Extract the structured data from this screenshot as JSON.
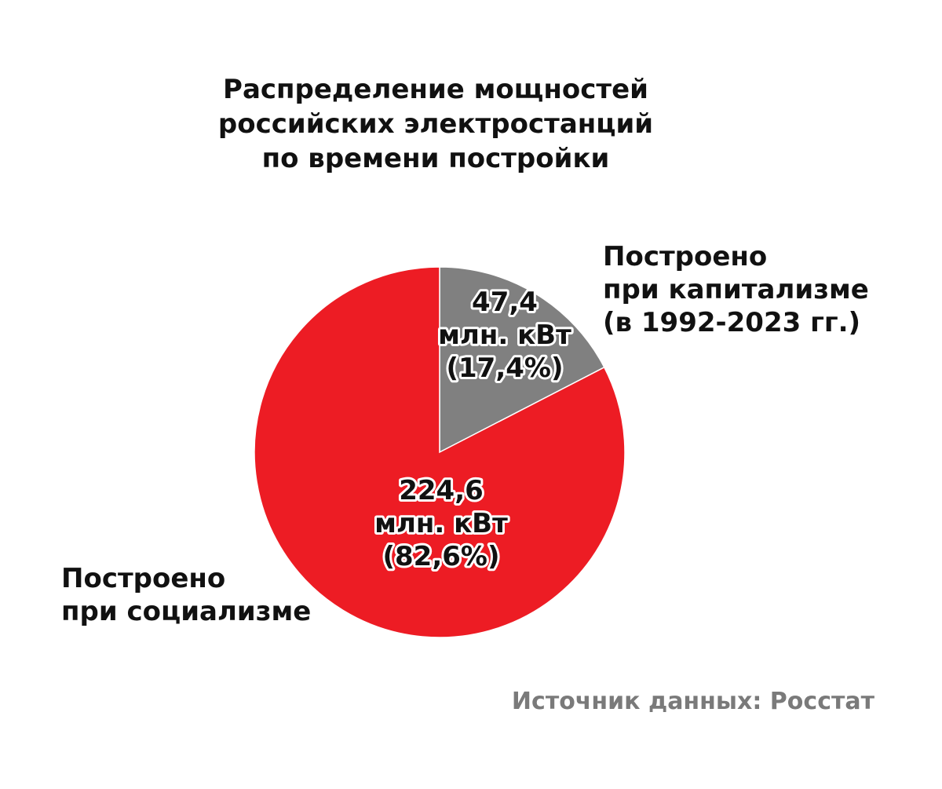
{
  "chart_data": {
    "type": "pie",
    "title_lines": [
      "Распределение мощностей",
      "российских электростанций",
      "по времени постройки"
    ],
    "slices": [
      {
        "label_lines": [
          "Построено",
          "при капитализме",
          "(в 1992-2023 гг.)"
        ],
        "value": 47.4,
        "percent": 17.4,
        "value_label_lines": [
          "47,4",
          "млн. кВт",
          "(17,4%)"
        ],
        "color": "#808080"
      },
      {
        "label_lines": [
          "Построено",
          "при социализме"
        ],
        "value": 224.6,
        "percent": 82.6,
        "value_label_lines": [
          "224,6",
          "млн. кВт",
          "(82,6%)"
        ],
        "color": "#ED1C24"
      }
    ],
    "start_angle": "12 o'clock",
    "direction": "clockwise"
  },
  "source": "Источник данных: Росстат"
}
